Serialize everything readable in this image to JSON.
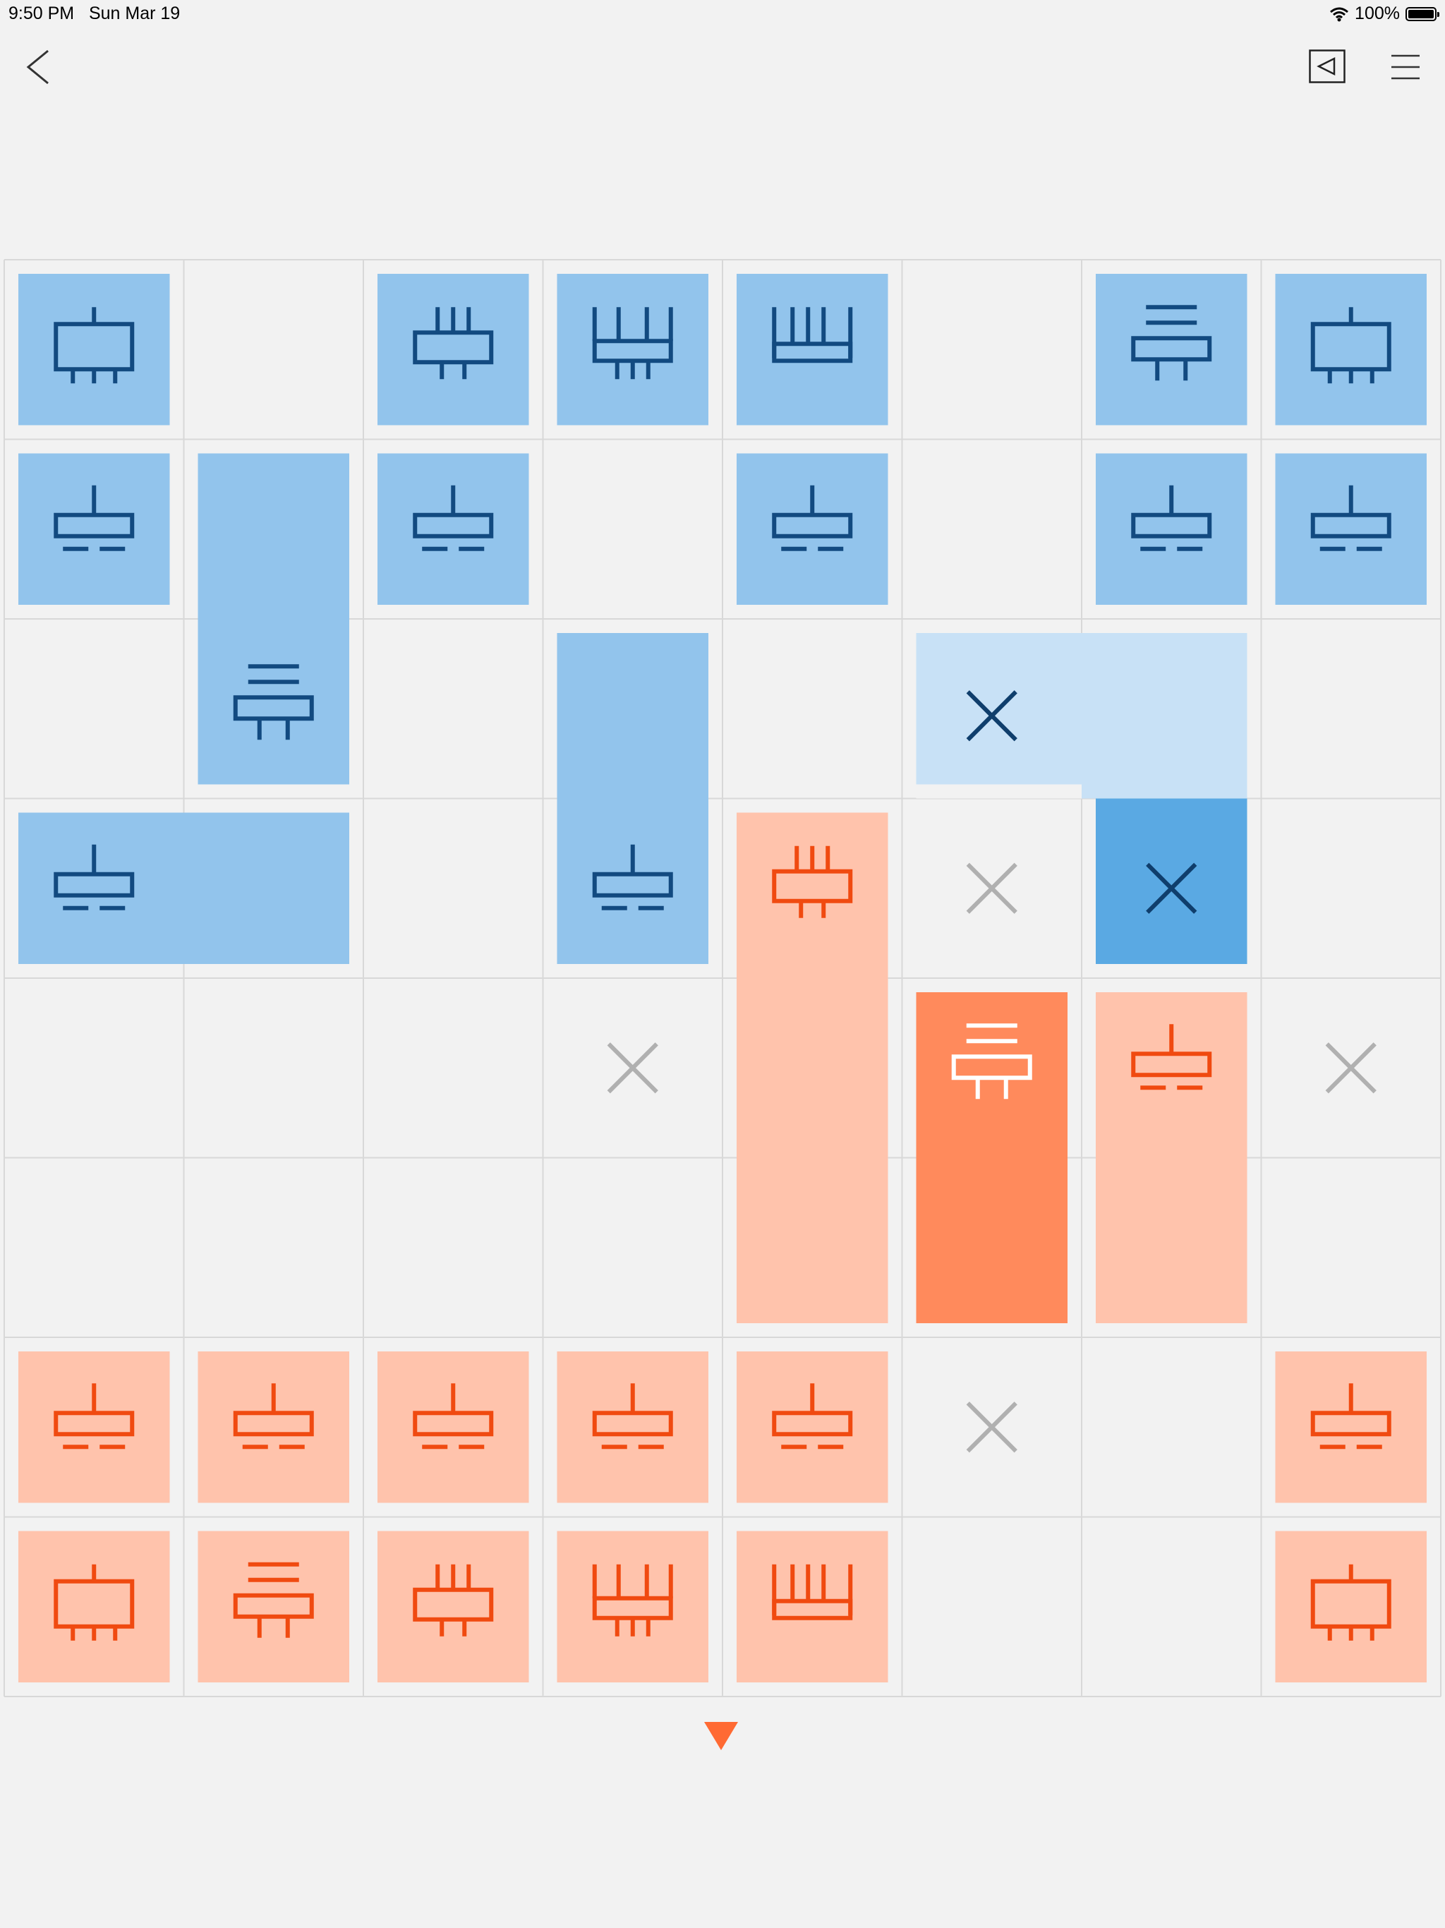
{
  "status_bar": {
    "time": "9:50 PM",
    "date": "Sun Mar 19",
    "battery": "100%"
  },
  "toolbar": {
    "back_icon": "chevron-left-icon",
    "play_icon": "square-triangle-left-icon",
    "menu_icon": "hamburger-menu-icon"
  },
  "colors": {
    "background": "#f2f2f2",
    "grid_line": "#d8d8d8",
    "blue_piece": "#92c4ec",
    "blue_light": "#c8e1f6",
    "blue_selected": "#5aa9e3",
    "blue_glyph": "#124a80",
    "blue_x_dark": "#0f3e6c",
    "orange_piece": "#ffc3ac",
    "orange_selected": "#ff8a5c",
    "orange_glyph": "#f04a10",
    "white_glyph": "#ffffff",
    "x_gray": "#b0b0b0",
    "arrow": "#ff6a33"
  },
  "board": {
    "rows": 8,
    "cols": 8,
    "blue_pieces": [
      {
        "r": 0,
        "c": 0,
        "w": 1,
        "h": 1,
        "glyph": "bar3"
      },
      {
        "r": 0,
        "c": 2,
        "w": 1,
        "h": 1,
        "glyph": "prong3"
      },
      {
        "r": 0,
        "c": 3,
        "w": 1,
        "h": 1,
        "glyph": "prong4"
      },
      {
        "r": 0,
        "c": 4,
        "w": 1,
        "h": 1,
        "glyph": "comb"
      },
      {
        "r": 0,
        "c": 6,
        "w": 1,
        "h": 1,
        "glyph": "lines2"
      },
      {
        "r": 0,
        "c": 7,
        "w": 1,
        "h": 1,
        "glyph": "bar3"
      },
      {
        "r": 1,
        "c": 0,
        "w": 1,
        "h": 1,
        "glyph": "dash"
      },
      {
        "r": 1,
        "c": 1,
        "w": 1,
        "h": 2,
        "glyph": "lines2"
      },
      {
        "r": 1,
        "c": 2,
        "w": 1,
        "h": 1,
        "glyph": "dash"
      },
      {
        "r": 1,
        "c": 4,
        "w": 1,
        "h": 1,
        "glyph": "dash"
      },
      {
        "r": 1,
        "c": 6,
        "w": 1,
        "h": 1,
        "glyph": "dash"
      },
      {
        "r": 1,
        "c": 7,
        "w": 1,
        "h": 1,
        "glyph": "dash"
      },
      {
        "r": 2,
        "c": 3,
        "w": 1,
        "h": 2,
        "glyph": "dash"
      },
      {
        "r": 3,
        "c": 0,
        "w": 2,
        "h": 1,
        "glyph": "dash"
      }
    ],
    "orange_pieces": [
      {
        "r": 3,
        "c": 4,
        "w": 1,
        "h": 3,
        "glyph": "prong3"
      },
      {
        "r": 4,
        "c": 5,
        "w": 1,
        "h": 2,
        "glyph": "lines2",
        "selected": true
      },
      {
        "r": 4,
        "c": 6,
        "w": 1,
        "h": 2,
        "glyph": "dash"
      },
      {
        "r": 6,
        "c": 0,
        "w": 1,
        "h": 1,
        "glyph": "dash"
      },
      {
        "r": 6,
        "c": 1,
        "w": 1,
        "h": 1,
        "glyph": "dash"
      },
      {
        "r": 6,
        "c": 2,
        "w": 1,
        "h": 1,
        "glyph": "dash"
      },
      {
        "r": 6,
        "c": 3,
        "w": 1,
        "h": 1,
        "glyph": "dash"
      },
      {
        "r": 6,
        "c": 4,
        "w": 1,
        "h": 1,
        "glyph": "dash"
      },
      {
        "r": 6,
        "c": 7,
        "w": 1,
        "h": 1,
        "glyph": "dash"
      },
      {
        "r": 7,
        "c": 0,
        "w": 1,
        "h": 1,
        "glyph": "bar3"
      },
      {
        "r": 7,
        "c": 1,
        "w": 1,
        "h": 1,
        "glyph": "lines2"
      },
      {
        "r": 7,
        "c": 2,
        "w": 1,
        "h": 1,
        "glyph": "prong3"
      },
      {
        "r": 7,
        "c": 3,
        "w": 1,
        "h": 1,
        "glyph": "prong4"
      },
      {
        "r": 7,
        "c": 4,
        "w": 1,
        "h": 1,
        "glyph": "comb"
      },
      {
        "r": 7,
        "c": 7,
        "w": 1,
        "h": 1,
        "glyph": "bar3"
      }
    ],
    "gray_x_marks": [
      {
        "r": 3,
        "c": 5
      },
      {
        "r": 4,
        "c": 3
      },
      {
        "r": 4,
        "c": 7
      },
      {
        "r": 6,
        "c": 5
      }
    ],
    "move_highlight": {
      "light_cells": [
        [
          2,
          5
        ],
        [
          2,
          6
        ]
      ],
      "selected_cell": [
        3,
        6
      ],
      "x_on_light": [
        2,
        5
      ],
      "x_on_selected": [
        3,
        6
      ]
    }
  }
}
